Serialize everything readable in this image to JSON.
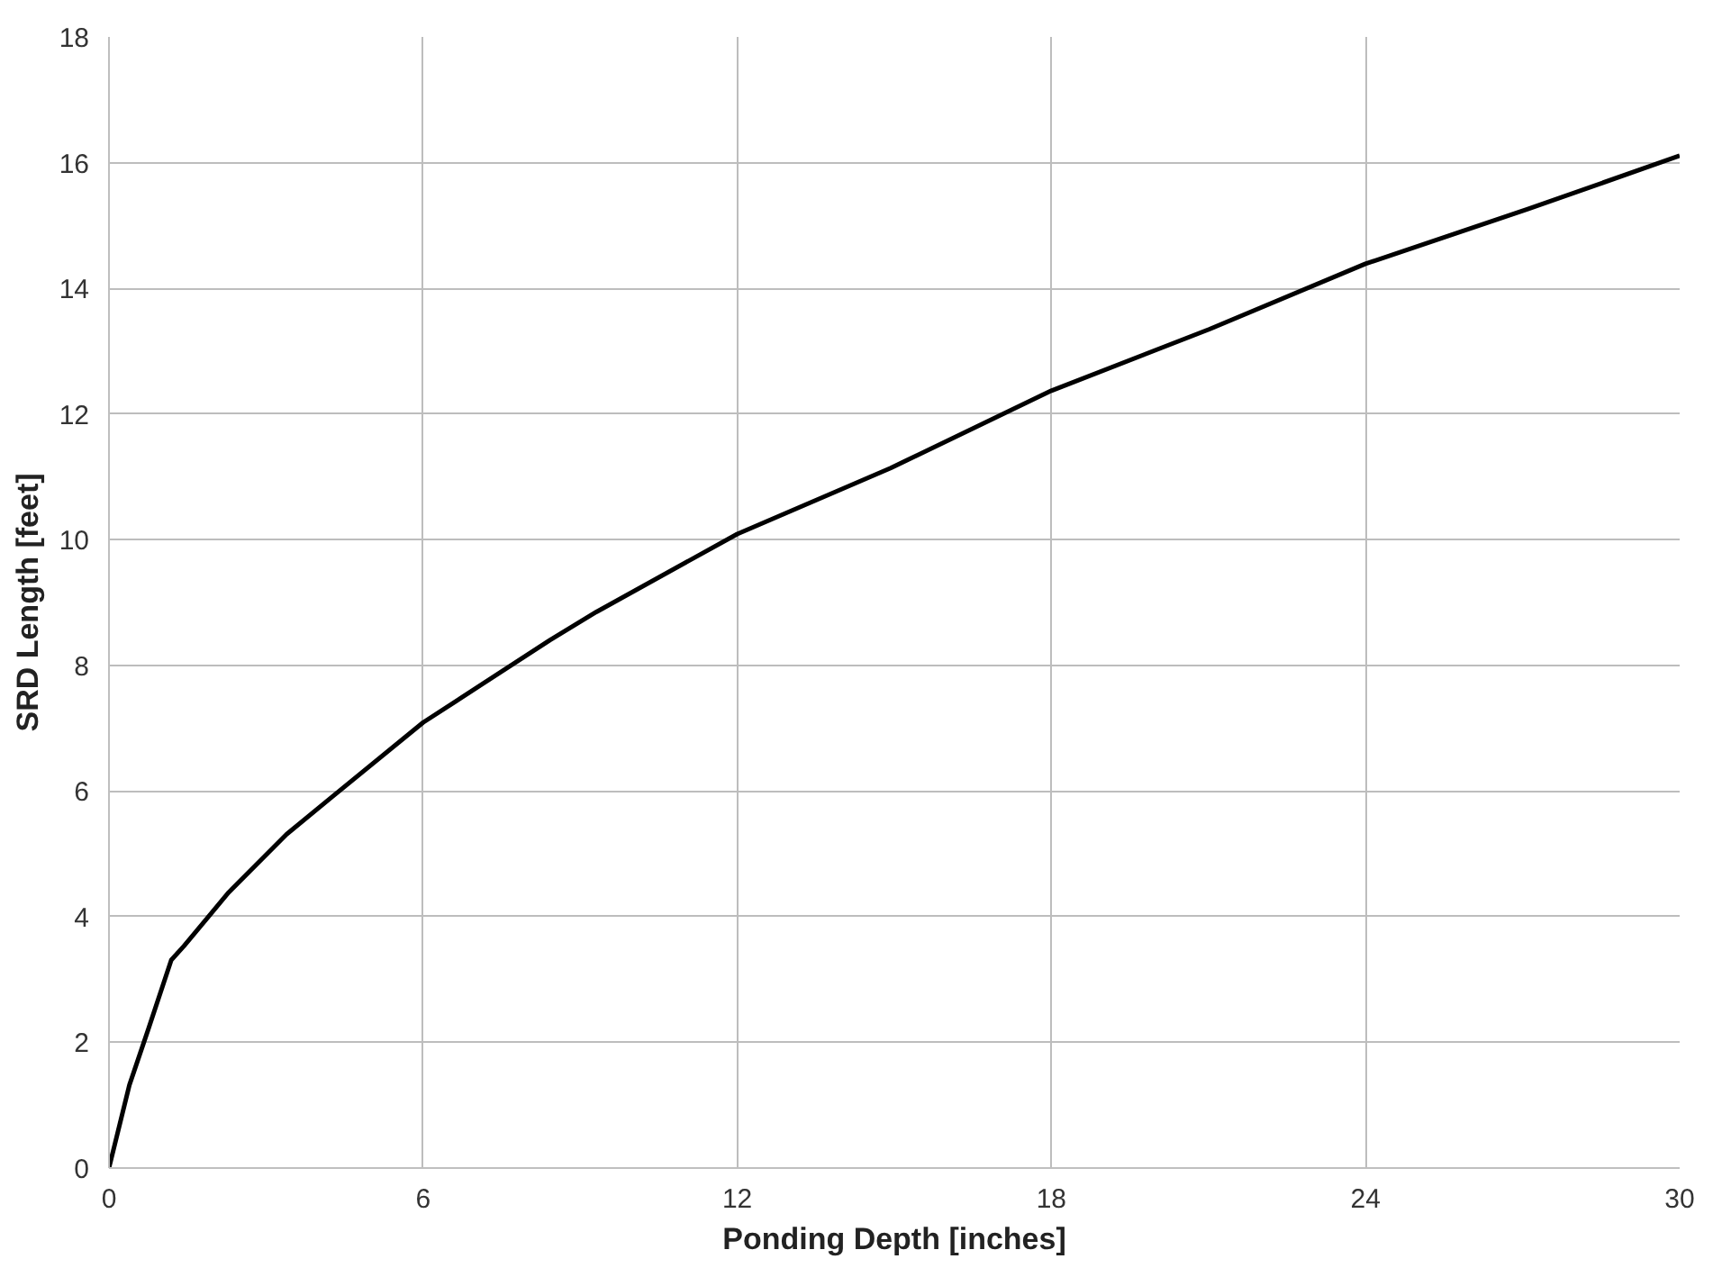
{
  "chart_data": {
    "type": "line",
    "xlabel": "Ponding Depth [inches]",
    "ylabel": "SRD Length [feet]",
    "x": [
      0,
      0.39,
      0.76,
      1.19,
      1.43,
      2.29,
      3.39,
      4.25,
      6,
      8.42,
      9.31,
      12,
      14.93,
      18,
      21.02,
      24,
      27.1,
      30
    ],
    "series": [
      {
        "color": "#000000",
        "values": [
          0,
          1.32,
          2.23,
          3.31,
          3.53,
          4.39,
          5.31,
          5.9,
          7.09,
          8.4,
          8.85,
          10.09,
          11.14,
          12.37,
          13.35,
          14.39,
          15.26,
          16.11
        ]
      }
    ],
    "xlim": [
      0,
      30
    ],
    "xticks": [
      0,
      6,
      12,
      18,
      24,
      30
    ],
    "ylim": [
      0,
      18
    ],
    "yticks": [
      0,
      2,
      4,
      6,
      8,
      10,
      12,
      14,
      16,
      18
    ],
    "grid": true,
    "line_style": "solid"
  }
}
